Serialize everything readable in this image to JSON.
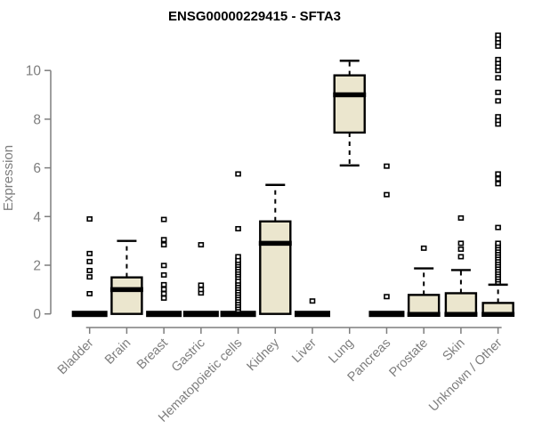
{
  "title": "ENSG00000229415 - SFTA3",
  "chart_data": {
    "type": "boxplot",
    "title": "ENSG00000229415 - SFTA3",
    "xlabel": "",
    "ylabel": "Expression",
    "ylim": [
      0,
      11.5
    ],
    "yticks": [
      0,
      2,
      4,
      6,
      8,
      10
    ],
    "grid": false,
    "legend": "none",
    "categories": [
      "Bladder",
      "Brain",
      "Breast",
      "Gastric",
      "Hematopoietic cells",
      "Kidney",
      "Liver",
      "Lung",
      "Pancreas",
      "Prostate",
      "Skin",
      "Unknown / Other"
    ],
    "boxes": [
      {
        "category": "Bladder",
        "q1": 0,
        "median": 0,
        "q3": 0,
        "whisker_low": 0,
        "whisker_high": 0,
        "outliers": [
          0.83,
          1.52,
          1.78,
          2.15,
          2.48,
          3.9
        ]
      },
      {
        "category": "Brain",
        "q1": 0,
        "median": 1.0,
        "q3": 1.5,
        "whisker_low": 0,
        "whisker_high": 3.0,
        "outliers": []
      },
      {
        "category": "Breast",
        "q1": 0,
        "median": 0,
        "q3": 0,
        "whisker_low": 0,
        "whisker_high": 0,
        "outliers": [
          0.65,
          0.83,
          1.01,
          1.2,
          1.6,
          1.99,
          2.84,
          3.05,
          3.88
        ]
      },
      {
        "category": "Gastric",
        "q1": 0,
        "median": 0,
        "q3": 0,
        "whisker_low": 0,
        "whisker_high": 0,
        "outliers": [
          0.86,
          1.0,
          1.18,
          2.84
        ]
      },
      {
        "category": "Hematopoietic cells",
        "q1": 0,
        "median": 0,
        "q3": 0,
        "whisker_low": 0,
        "whisker_high": 0,
        "outliers": [
          0.16,
          0.25,
          0.35,
          0.45,
          0.55,
          0.65,
          0.75,
          0.85,
          0.95,
          1.05,
          1.15,
          1.25,
          1.35,
          1.5,
          1.6,
          1.7,
          1.8,
          1.9,
          2.0,
          2.1,
          2.2,
          2.35,
          3.5,
          5.75
        ]
      },
      {
        "category": "Kidney",
        "q1": 0,
        "median": 2.9,
        "q3": 3.8,
        "whisker_low": 0,
        "whisker_high": 5.3,
        "outliers": []
      },
      {
        "category": "Liver",
        "q1": 0,
        "median": 0,
        "q3": 0,
        "whisker_low": 0,
        "whisker_high": 0,
        "outliers": [
          0.53
        ]
      },
      {
        "category": "Lung",
        "q1": 7.45,
        "median": 9.0,
        "q3": 9.8,
        "whisker_low": 6.1,
        "whisker_high": 10.4,
        "outliers": []
      },
      {
        "category": "Pancreas",
        "q1": 0,
        "median": 0,
        "q3": 0,
        "whisker_low": 0,
        "whisker_high": 0,
        "outliers": [
          0.71,
          4.9,
          6.07
        ]
      },
      {
        "category": "Prostate",
        "q1": 0,
        "median": 0,
        "q3": 0.78,
        "whisker_low": 0,
        "whisker_high": 1.87,
        "outliers": [
          2.7
        ]
      },
      {
        "category": "Skin",
        "q1": 0,
        "median": 0,
        "q3": 0.85,
        "whisker_low": 0,
        "whisker_high": 1.8,
        "outliers": [
          2.35,
          2.66,
          2.9,
          3.94
        ]
      },
      {
        "category": "Unknown / Other",
        "q1": 0,
        "median": 0,
        "q3": 0.45,
        "whisker_low": 0,
        "whisker_high": 1.2,
        "outliers": [
          1.3,
          1.4,
          1.5,
          1.6,
          1.7,
          1.8,
          1.9,
          2.0,
          2.1,
          2.2,
          2.3,
          2.4,
          2.5,
          2.6,
          2.7,
          2.8,
          2.9,
          3.55,
          5.35,
          5.55,
          5.75,
          7.8,
          7.95,
          8.1,
          8.75,
          9.1,
          9.7,
          10.0,
          10.15,
          10.3,
          10.45,
          11.0,
          11.15,
          11.3,
          11.45
        ]
      }
    ],
    "colors": {
      "box_fill": "#EBE6CE",
      "box_stroke": "#000000",
      "median": "#000000",
      "whisker": "#000000",
      "outlier_stroke": "#000000",
      "outlier_fill": "#ffffff",
      "axis": "#7e7e7e",
      "tick_label": "#7e7e7e",
      "title": "#000000"
    }
  }
}
